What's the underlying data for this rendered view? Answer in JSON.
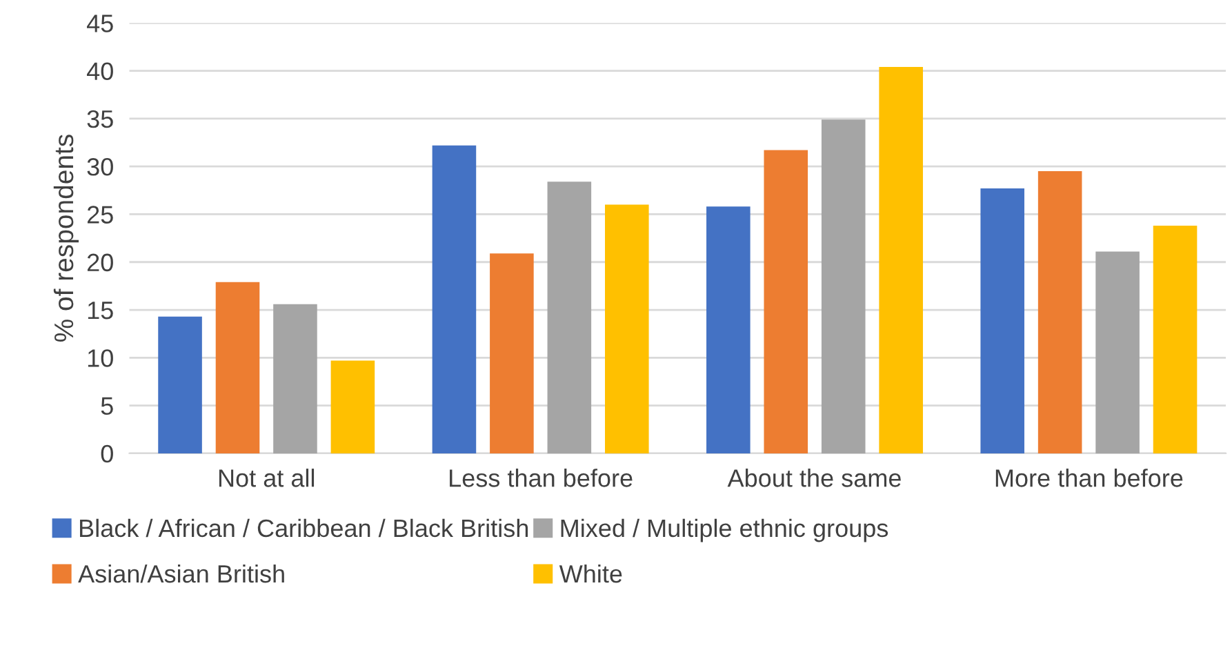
{
  "chart_data": {
    "type": "bar",
    "ylabel": "% of respondents",
    "categories": [
      "Not at all",
      "Less than before",
      "About the same",
      "More than before"
    ],
    "series": [
      {
        "name": "Black / African / Caribbean / Black British",
        "color": "#4472c4",
        "values": [
          14.3,
          32.2,
          25.8,
          27.7
        ]
      },
      {
        "name": "Asian/Asian British",
        "color": "#ed7d31",
        "values": [
          17.9,
          20.9,
          31.7,
          29.5
        ]
      },
      {
        "name": "Mixed / Multiple ethnic groups",
        "color": "#a5a5a5",
        "values": [
          15.6,
          28.4,
          34.9,
          21.1
        ]
      },
      {
        "name": "White",
        "color": "#ffc000",
        "values": [
          9.7,
          26.0,
          40.4,
          23.8
        ]
      }
    ],
    "ylim": [
      0,
      45
    ],
    "yticks": [
      0,
      5,
      10,
      15,
      20,
      25,
      30,
      35,
      40,
      45
    ],
    "grid": "y",
    "legend": "bottom"
  }
}
